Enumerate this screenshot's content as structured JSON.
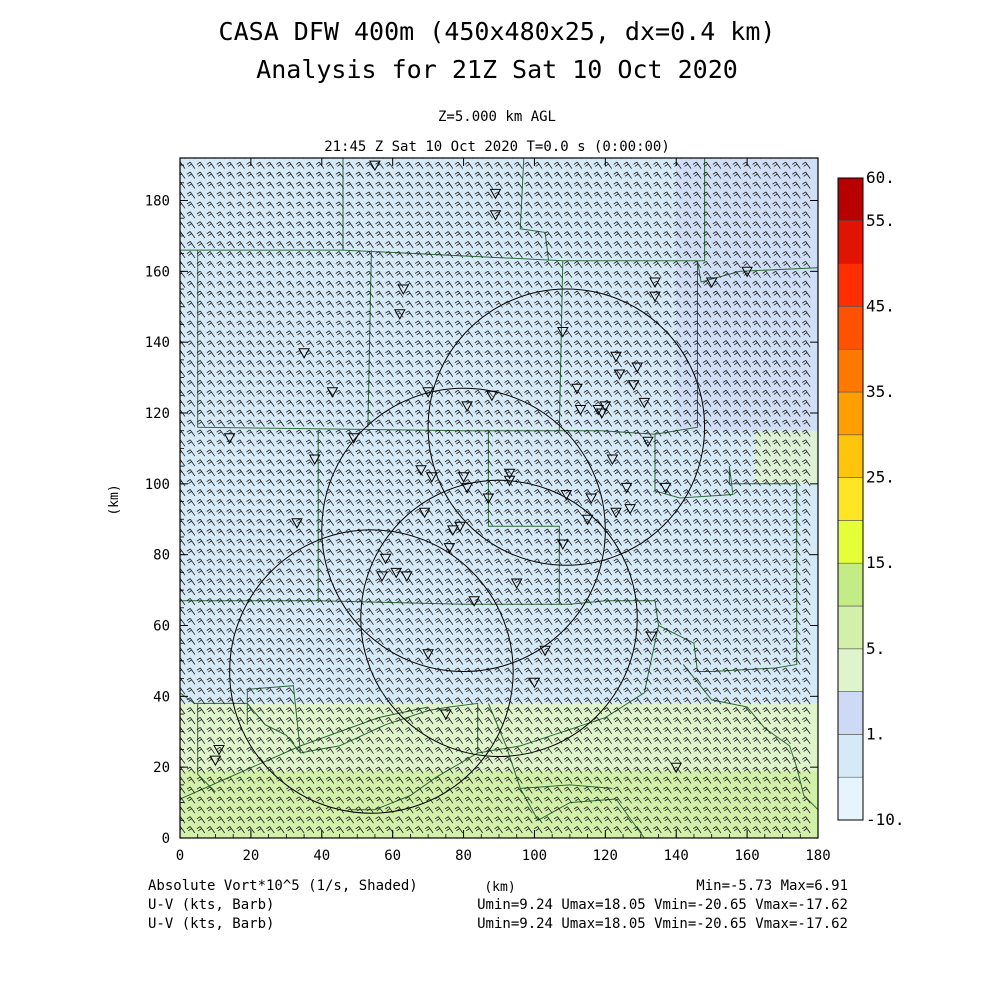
{
  "title": {
    "line1": "CASA DFW 400m (450x480x25, dx=0.4 km)",
    "line2": "Analysis for 21Z Sat 10 Oct 2020"
  },
  "subtitle": {
    "level": "Z=5.000 km AGL",
    "time": "21:45 Z Sat 10 Oct 2020    T=0.0 s (0:00:00)"
  },
  "footer": {
    "shaded_label": "Absolute Vort*10^5 (1/s, Shaded)",
    "barb1_label": "U-V (kts, Barb)",
    "barb2_label": "U-V (kts, Barb)",
    "minmax": "Min=-5.73 Max=6.91",
    "barb1_stats": "Umin=9.24 Umax=18.05 Vmin=-20.65 Vmax=-17.62",
    "barb2_stats": "Umin=9.24 Umax=18.05 Vmin=-20.65 Vmax=-17.62"
  },
  "colors": {
    "frame": "#000000",
    "county_lines": "#2e6b3a",
    "radar_rings": "#000000",
    "barbs": "#1e1e1e"
  },
  "chart_data": {
    "type": "heatmap",
    "xlabel": "(km)",
    "ylabel": "(km)",
    "xlim": [
      0,
      180
    ],
    "ylim": [
      0,
      192
    ],
    "xticks": [
      0,
      20,
      40,
      60,
      80,
      100,
      120,
      140,
      160,
      180
    ],
    "yticks": [
      0,
      20,
      40,
      60,
      80,
      100,
      120,
      140,
      160,
      180
    ],
    "field_name": "Absolute Vort*10^5 (1/s, Shaded)",
    "field_min": -5.73,
    "field_max": 6.91,
    "colorbar": {
      "tick_labels": [
        "-10.",
        "1.",
        "5.",
        "15.",
        "25.",
        "35.",
        "45.",
        "55.",
        "60."
      ],
      "tick_values": [
        -10,
        1,
        5,
        15,
        25,
        35,
        45,
        55,
        60
      ],
      "levels": [
        -10,
        -1,
        1,
        3,
        5,
        10,
        15,
        20,
        25,
        30,
        35,
        40,
        45,
        50,
        55,
        60
      ],
      "colors": [
        "#e8f4fb",
        "#d6e9f7",
        "#cdd9f5",
        "#dff3cc",
        "#d3f0aa",
        "#c4ec86",
        "#e4ff38",
        "#ffe624",
        "#ffc40c",
        "#ff9e00",
        "#ff7800",
        "#ff5200",
        "#ff2e00",
        "#e01400",
        "#b80000"
      ]
    },
    "shading_bands": [
      {
        "y_from": 0,
        "y_to": 19,
        "value": 5
      },
      {
        "y_from": 19,
        "y_to": 38,
        "value": 3
      },
      {
        "y_from": 38,
        "y_to": 192,
        "value": -1
      }
    ],
    "shading_patches": [
      {
        "x_from": 140,
        "x_to": 180,
        "y_from": 115,
        "y_to": 192,
        "value": 1
      },
      {
        "x_from": 162,
        "x_to": 180,
        "y_from": 100,
        "y_to": 115,
        "value": 3
      }
    ],
    "wind": {
      "u_range_kts": [
        9.24,
        18.05
      ],
      "v_range_kts": [
        -20.65,
        -17.62
      ],
      "barb_spacing_km": 2.8
    },
    "radar_rings": [
      {
        "center": [
          109,
          116
        ],
        "radius": 39
      },
      {
        "center": [
          80,
          87
        ],
        "radius": 40
      },
      {
        "center": [
          90,
          62
        ],
        "radius": 39
      },
      {
        "center": [
          54,
          47
        ],
        "radius": 40
      }
    ],
    "county_lines": [
      [
        [
          46,
          192
        ],
        [
          46,
          166
        ],
        [
          5,
          166
        ],
        [
          5,
          116
        ],
        [
          80,
          115
        ],
        [
          119,
          115
        ],
        [
          134,
          114
        ],
        [
          146,
          116
        ],
        [
          146,
          137
        ],
        [
          146,
          163
        ],
        [
          147,
          157
        ],
        [
          158,
          160
        ],
        [
          180,
          161
        ]
      ],
      [
        [
          0,
          166
        ],
        [
          5,
          166
        ]
      ],
      [
        [
          46,
          166
        ],
        [
          108,
          163
        ],
        [
          148,
          163
        ],
        [
          148,
          192
        ]
      ],
      [
        [
          97,
          192
        ],
        [
          96,
          172
        ],
        [
          103,
          171
        ],
        [
          104,
          163
        ]
      ],
      [
        [
          108,
          163
        ],
        [
          107,
          115
        ]
      ],
      [
        [
          54,
          166
        ],
        [
          53,
          116
        ]
      ],
      [
        [
          39,
          115
        ],
        [
          39,
          67
        ],
        [
          0,
          67
        ]
      ],
      [
        [
          39,
          67
        ],
        [
          80,
          66
        ],
        [
          110,
          66
        ],
        [
          120,
          67
        ],
        [
          134,
          67
        ],
        [
          135,
          60
        ],
        [
          145,
          55
        ],
        [
          146,
          47
        ],
        [
          150,
          47
        ],
        [
          168,
          48
        ],
        [
          174,
          49
        ],
        [
          174,
          100
        ],
        [
          155,
          100
        ],
        [
          155,
          105
        ],
        [
          156,
          97
        ],
        [
          141,
          96
        ],
        [
          134,
          98
        ],
        [
          134,
          114
        ]
      ],
      [
        [
          87,
          115
        ],
        [
          87,
          88
        ],
        [
          107,
          88
        ],
        [
          107,
          66
        ]
      ],
      [
        [
          135,
          60
        ],
        [
          131,
          41
        ],
        [
          120,
          34
        ],
        [
          108,
          30
        ],
        [
          96,
          26
        ],
        [
          84,
          24
        ],
        [
          72,
          17
        ],
        [
          65,
          12
        ],
        [
          55,
          8
        ],
        [
          48,
          8
        ]
      ],
      [
        [
          84,
          24
        ],
        [
          84,
          38
        ],
        [
          76,
          37
        ],
        [
          70,
          36
        ],
        [
          58,
          32
        ],
        [
          45,
          26
        ],
        [
          39,
          25
        ],
        [
          34,
          24
        ],
        [
          30,
          29
        ],
        [
          24,
          32
        ],
        [
          19,
          38
        ],
        [
          4,
          38
        ],
        [
          0,
          41
        ]
      ],
      [
        [
          0,
          11
        ],
        [
          34,
          26
        ],
        [
          56,
          34
        ],
        [
          70,
          37
        ]
      ],
      [
        [
          5,
          38
        ],
        [
          5,
          18
        ],
        [
          10,
          13
        ]
      ],
      [
        [
          34,
          24
        ],
        [
          32,
          43
        ],
        [
          19,
          42
        ],
        [
          19,
          32
        ]
      ],
      [
        [
          87,
          38
        ],
        [
          92,
          26
        ],
        [
          96,
          14
        ],
        [
          101,
          5
        ],
        [
          110,
          10
        ],
        [
          123,
          11
        ],
        [
          131,
          0
        ]
      ],
      [
        [
          142,
          49
        ],
        [
          150,
          39
        ],
        [
          160,
          37
        ],
        [
          165,
          31
        ],
        [
          172,
          26
        ],
        [
          174,
          20
        ],
        [
          176,
          12
        ],
        [
          180,
          8
        ],
        [
          180,
          0
        ]
      ],
      [
        [
          96,
          14
        ],
        [
          110,
          15
        ],
        [
          122,
          14
        ]
      ]
    ],
    "stations": [
      [
        14,
        113
      ],
      [
        35,
        137
      ],
      [
        49,
        113
      ],
      [
        57,
        74
      ],
      [
        61,
        75
      ],
      [
        58,
        79
      ],
      [
        64,
        74
      ],
      [
        62,
        148
      ],
      [
        63,
        155
      ],
      [
        68,
        104
      ],
      [
        69,
        92
      ],
      [
        70,
        126
      ],
      [
        70,
        52
      ],
      [
        71,
        102
      ],
      [
        75,
        35
      ],
      [
        76,
        82
      ],
      [
        77,
        87
      ],
      [
        79,
        88
      ],
      [
        80,
        102
      ],
      [
        81,
        99
      ],
      [
        81,
        122
      ],
      [
        83,
        67
      ],
      [
        87,
        96
      ],
      [
        88,
        125
      ],
      [
        89,
        182
      ],
      [
        89,
        176
      ],
      [
        93,
        103
      ],
      [
        93,
        101
      ],
      [
        95,
        72
      ],
      [
        100,
        44
      ],
      [
        103,
        53
      ],
      [
        108,
        143
      ],
      [
        108,
        83
      ],
      [
        109,
        97
      ],
      [
        112,
        127
      ],
      [
        113,
        121
      ],
      [
        115,
        90
      ],
      [
        116,
        96
      ],
      [
        118,
        121
      ],
      [
        119,
        120
      ],
      [
        120,
        122
      ],
      [
        122,
        107
      ],
      [
        123,
        92
      ],
      [
        123,
        136
      ],
      [
        124,
        131
      ],
      [
        126,
        99
      ],
      [
        127,
        93
      ],
      [
        128,
        128
      ],
      [
        129,
        133
      ],
      [
        131,
        123
      ],
      [
        132,
        112
      ],
      [
        133,
        57
      ],
      [
        134,
        153
      ],
      [
        134,
        157
      ],
      [
        137,
        99
      ],
      [
        140,
        20
      ],
      [
        150,
        157
      ],
      [
        160,
        160
      ],
      [
        11,
        25
      ],
      [
        10,
        22
      ],
      [
        33,
        89
      ],
      [
        38,
        107
      ],
      [
        43,
        126
      ],
      [
        55,
        190
      ]
    ]
  }
}
